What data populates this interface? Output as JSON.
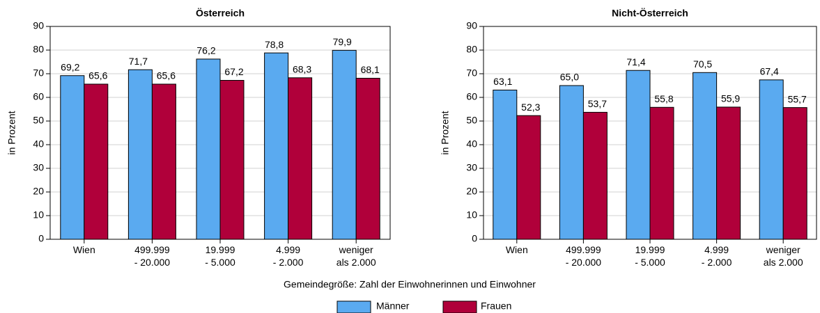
{
  "chart_data": [
    {
      "type": "bar",
      "title": "Österreich",
      "ylabel": "in Prozent",
      "categories": [
        "Wien",
        "499.999\n- 20.000",
        "19.999\n- 5.000",
        "4.999\n- 2.000",
        "weniger\nals 2.000"
      ],
      "series": [
        {
          "name": "Männer",
          "color": "#5aaaf0",
          "values": [
            69.2,
            71.7,
            76.2,
            78.8,
            79.9
          ],
          "value_labels": [
            "69,2",
            "71,7",
            "76,2",
            "78,8",
            "79,9"
          ]
        },
        {
          "name": "Frauen",
          "color": "#b0003a",
          "values": [
            65.6,
            65.6,
            67.2,
            68.3,
            68.1
          ],
          "value_labels": [
            "65,6",
            "65,6",
            "67,2",
            "68,3",
            "68,1"
          ]
        }
      ],
      "ylim": [
        0,
        90
      ],
      "yticks": [
        0,
        10,
        20,
        30,
        40,
        50,
        60,
        70,
        80,
        90
      ],
      "grid": true
    },
    {
      "type": "bar",
      "title": "Nicht-Österreich",
      "ylabel": "in Prozent",
      "categories": [
        "Wien",
        "499.999\n- 20.000",
        "19.999\n- 5.000",
        "4.999\n- 2.000",
        "weniger\nals 2.000"
      ],
      "series": [
        {
          "color": "#5aaaf0",
          "values": [
            63.1,
            65.0,
            71.4,
            70.5,
            67.4
          ],
          "value_labels": [
            "63,1",
            "65,0",
            "71,4",
            "70,5",
            "67,4"
          ]
        },
        {
          "color": "#b0003a",
          "values": [
            52.3,
            53.7,
            55.8,
            55.9,
            55.7
          ],
          "value_labels": [
            "52,3",
            "53,7",
            "55,8",
            "55,9",
            "55,7"
          ]
        }
      ],
      "ylim": [
        0,
        90
      ],
      "yticks": [
        0,
        10,
        20,
        30,
        40,
        50,
        60,
        70,
        80,
        90
      ],
      "grid": true
    }
  ],
  "xlabel": "Gemeindegröße: Zahl der Einwohnerinnen und Einwohner"
}
